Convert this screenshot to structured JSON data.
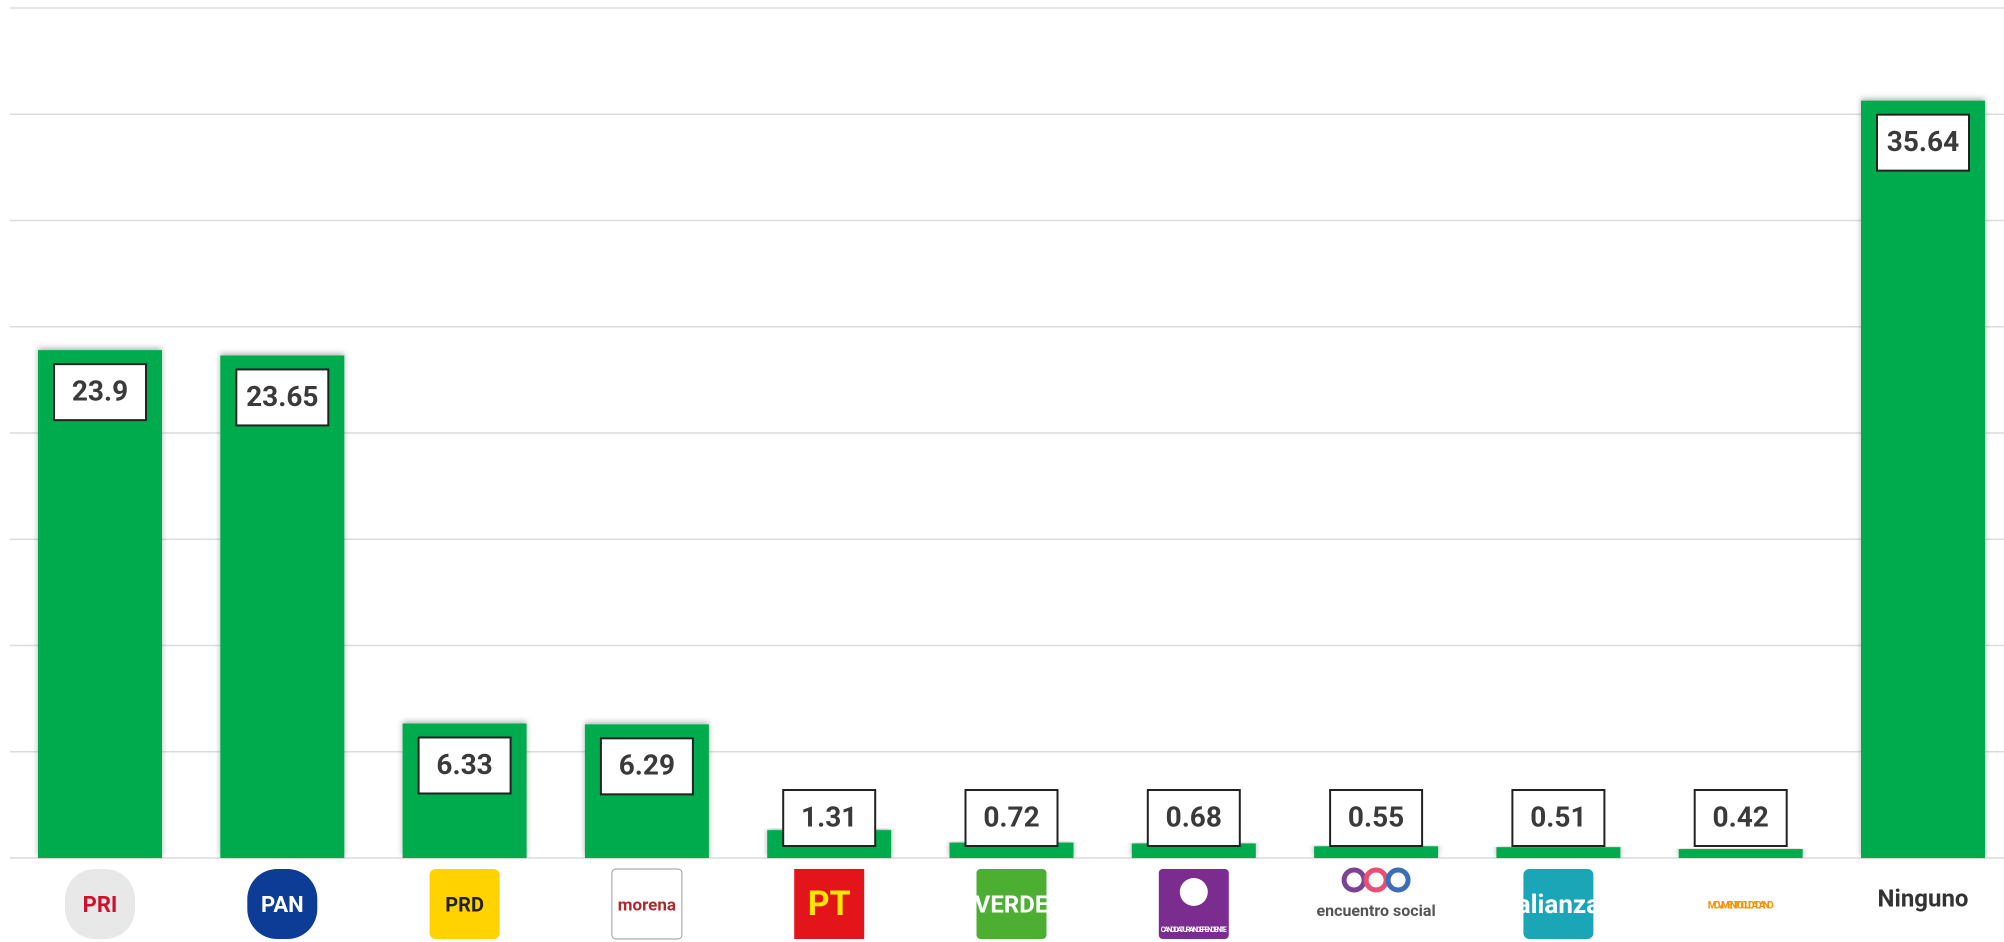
{
  "chart_data": {
    "type": "bar",
    "categories": [
      "PRI",
      "PAN",
      "PRD",
      "morena",
      "PT",
      "VERDE",
      "CANDIDATURA INDEPENDIENTE",
      "encuentro social",
      "alianza",
      "MOVIMIENTO CIUDADANO",
      "Ninguno"
    ],
    "values": [
      23.9,
      23.65,
      6.33,
      6.29,
      1.31,
      0.72,
      0.68,
      0.55,
      0.51,
      0.42,
      35.64
    ],
    "color": "#00ab4e",
    "ylim": [
      0,
      40
    ],
    "yticks": [
      0,
      5,
      10,
      15,
      20,
      25,
      30,
      35,
      40
    ],
    "grid": true
  }
}
